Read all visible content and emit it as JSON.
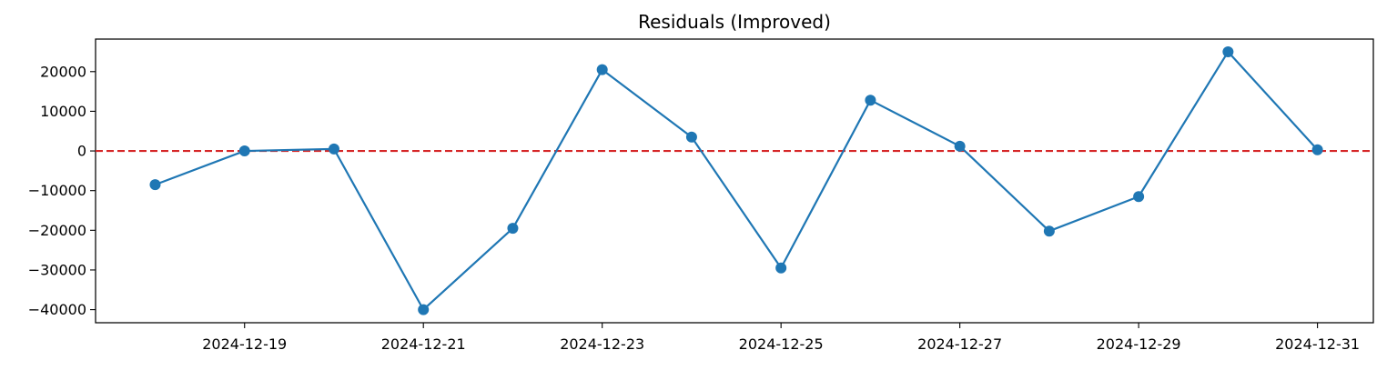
{
  "chart_data": {
    "type": "line",
    "title": "Residuals (Improved)",
    "xlabel": "",
    "ylabel": "",
    "x": [
      "2024-12-18",
      "2024-12-19",
      "2024-12-20",
      "2024-12-21",
      "2024-12-22",
      "2024-12-23",
      "2024-12-24",
      "2024-12-25",
      "2024-12-26",
      "2024-12-27",
      "2024-12-28",
      "2024-12-29",
      "2024-12-30",
      "2024-12-31"
    ],
    "series": [
      {
        "values": [
          -8500,
          0,
          500,
          -40000,
          -19500,
          20500,
          3500,
          -29500,
          12800,
          1200,
          -20200,
          -11500,
          25000,
          300
        ],
        "color": "#1f77b4",
        "marker": "circle"
      }
    ],
    "reference_line": {
      "y": 0,
      "color": "#d62728",
      "style": "dashed"
    },
    "x_ticks": [
      "2024-12-19",
      "2024-12-21",
      "2024-12-23",
      "2024-12-25",
      "2024-12-27",
      "2024-12-29",
      "2024-12-31"
    ],
    "y_ticks": [
      20000,
      10000,
      0,
      -10000,
      -20000,
      -30000,
      -40000
    ],
    "y_tick_labels": [
      "20000",
      "10000",
      "0",
      "−10000",
      "−20000",
      "−30000",
      "−40000"
    ],
    "xlim": [
      "2024-12-17T08:00",
      "2024-12-31T15:00"
    ],
    "ylim": [
      -43300,
      28200
    ],
    "grid": false,
    "legend": "none"
  }
}
